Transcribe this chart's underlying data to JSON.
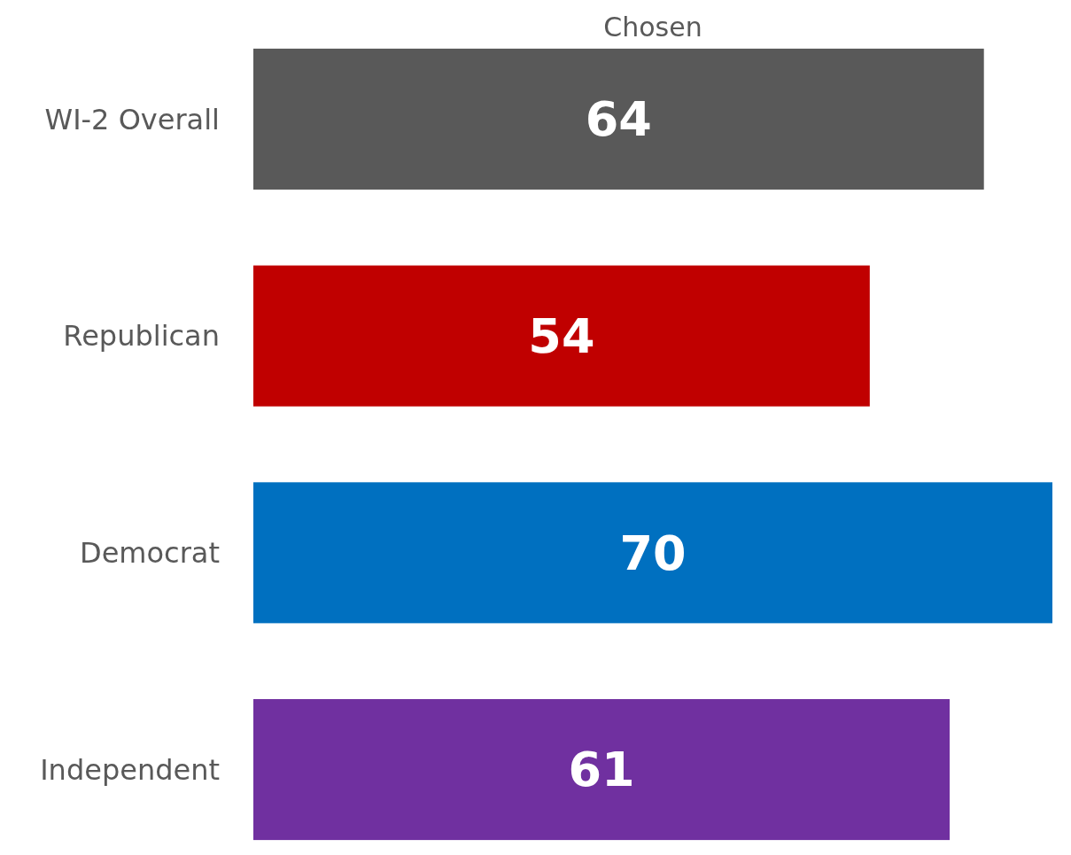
{
  "chart_data": {
    "type": "bar",
    "orientation": "horizontal",
    "title": "Chosen",
    "categories": [
      "WI-2 Overall",
      "Republican",
      "Democrat",
      "Independent"
    ],
    "values": [
      64,
      54,
      70,
      61
    ],
    "colors": [
      "#595959",
      "#c00000",
      "#0070c0",
      "#7030a0"
    ],
    "data_labels": true
  }
}
